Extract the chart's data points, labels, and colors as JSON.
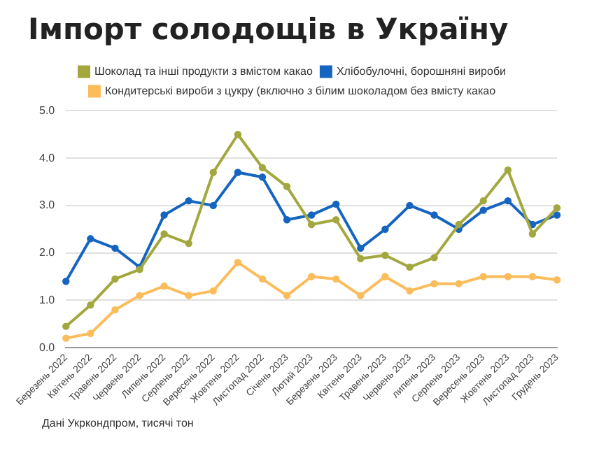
{
  "chart_data": {
    "type": "line",
    "title": "Імпорт солодощів в Україну",
    "categories": [
      "Березень 2022",
      "Квітень 2022",
      "Травень 2022",
      "Червень 2022",
      "Липень 2022",
      "Серпень 2022",
      "Вересень 2022",
      "Жовтень 2022",
      "Листопад 2022",
      "Січень 2023",
      "Лютий 2023",
      "Березень 2023",
      "Квітень 2023",
      "Травень 2023",
      "Червень 2023",
      "липень 2023",
      "Серпень 2023",
      "Вересень 2023",
      "Жовтень 2023",
      "Листопад 2023",
      "Грудень 2023"
    ],
    "series": [
      {
        "name": "Кондитерські вироби з цукру (включно з білим шоколадом без вмісту какао",
        "color": "#fbbc5b",
        "values": [
          0.2,
          0.3,
          0.8,
          1.1,
          1.3,
          1.1,
          1.2,
          1.8,
          1.45,
          1.1,
          1.5,
          1.45,
          1.1,
          1.5,
          1.2,
          1.35,
          1.35,
          1.5,
          1.5,
          1.5,
          1.43
        ]
      },
      {
        "name": "Хлібобулочні, борошняні вироби",
        "color": "#1565c0",
        "values": [
          1.4,
          2.3,
          2.1,
          1.7,
          2.8,
          3.1,
          3.0,
          3.7,
          3.6,
          2.7,
          2.8,
          3.03,
          2.1,
          2.5,
          3.0,
          2.8,
          2.5,
          2.9,
          3.1,
          2.6,
          2.8
        ]
      },
      {
        "name": "Шоколад та інші продукти з вмістом какао",
        "color": "#a2a83e",
        "values": [
          0.45,
          0.9,
          1.45,
          1.65,
          2.4,
          2.2,
          3.7,
          4.5,
          3.8,
          3.4,
          2.6,
          2.7,
          1.88,
          1.95,
          1.7,
          1.9,
          2.6,
          3.1,
          3.75,
          2.4,
          2.95
        ]
      }
    ],
    "ylim": [
      0,
      5
    ],
    "yticks": [
      {
        "value": 0,
        "label": "0.0"
      },
      {
        "value": 1,
        "label": "1.0"
      },
      {
        "value": 2,
        "label": "2.0"
      },
      {
        "value": 3,
        "label": "3.0"
      },
      {
        "value": 4,
        "label": "4.0"
      },
      {
        "value": 5,
        "label": "5.0"
      }
    ],
    "grid": "y",
    "legend": "top",
    "marker": "circle",
    "line_style": "solid",
    "annotations": [
      "Дані Укркондпром, тисячі тон"
    ]
  }
}
